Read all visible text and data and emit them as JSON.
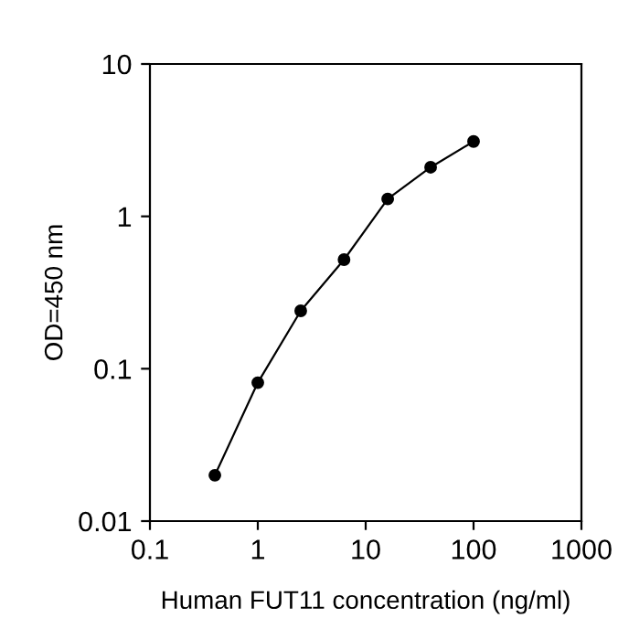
{
  "chart_data": {
    "type": "line",
    "xlabel": "Human FUT11 concentration (ng/ml)",
    "ylabel": "OD=450 nm",
    "log": "xy",
    "grid": false,
    "legend": false,
    "marker": "circle",
    "line_style": "solid",
    "x": [
      0.4,
      1,
      2.5,
      6.3,
      16,
      40,
      100
    ],
    "series": [
      {
        "color": "#000000",
        "values": [
          0.02,
          0.081,
          0.24,
          0.52,
          1.3,
          2.1,
          3.1
        ]
      }
    ],
    "xlim": [
      0.1,
      1000
    ],
    "ylim": [
      0.01,
      10
    ],
    "xticks": [
      0.1,
      1,
      10,
      100,
      1000
    ],
    "yticks": [
      0.01,
      0.1,
      1,
      10
    ]
  }
}
